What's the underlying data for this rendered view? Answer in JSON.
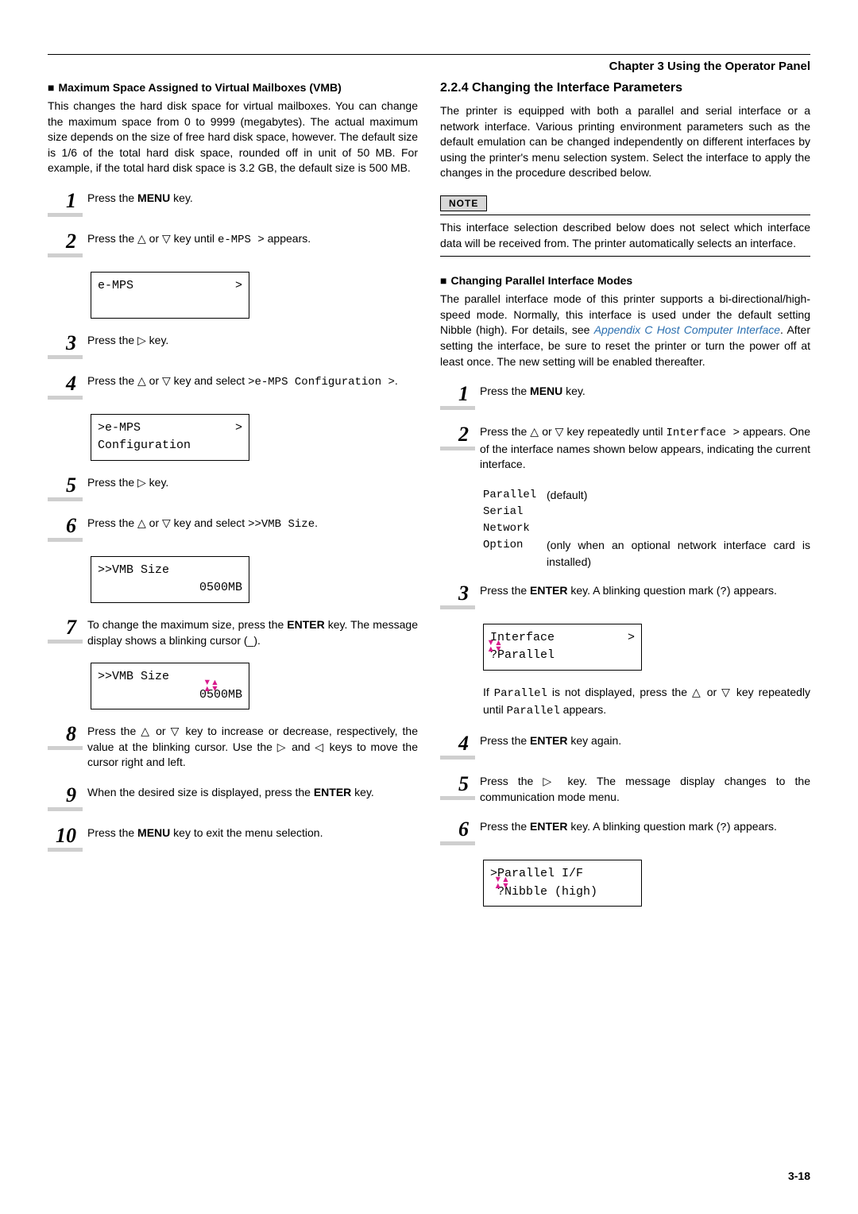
{
  "chapter_header": "Chapter 3  Using the Operator Panel",
  "left": {
    "heading": "Maximum Space Assigned to Virtual Mailboxes (VMB)",
    "intro": "This changes the hard disk space for virtual mailboxes. You can change the maximum space from 0 to 9999 (megabytes). The actual maximum size depends on the size of free hard disk space, however. The default size is 1/6 of the total hard disk space, rounded off in unit of 50 MB. For example, if the total hard disk space is 3.2 GB, the default size is 500 MB.",
    "steps": {
      "s1_a": "Press the ",
      "s1_b": "MENU",
      "s1_c": " key.",
      "s2_a": "Press the △ or ▽ key until ",
      "s2_code": "e-MPS >",
      "s2_b": " appears.",
      "lcd1_l1_left": "e-MPS",
      "lcd1_l1_right": ">",
      "s3": "Press the ▷ key.",
      "s4_a": "Press the △ or ▽ key and select ",
      "s4_code": ">e-MPS Configu­ration >",
      "s4_b": ".",
      "lcd2_l1_left": ">e-MPS",
      "lcd2_l1_right": ">",
      "lcd2_l2": " Configuration",
      "s5": "Press the ▷ key.",
      "s6_a": "Press the △ or ▽ key and select ",
      "s6_code": ">>VMB Size",
      "s6_b": ".",
      "lcd3_l1": ">>VMB Size",
      "lcd3_l2": "0500MB",
      "s7_a": "To change the maximum size, press the ",
      "s7_b": "ENTER",
      "s7_c": " key. The message display shows a blinking cursor (_).",
      "lcd4_l1": ">>VMB Size",
      "lcd4_l2_pre": "0",
      "lcd4_l2_blink": "5",
      "lcd4_l2_post": "00MB",
      "s8": "Press the △ or ▽ key to increase or decrease, respectively, the value at the blinking cursor. Use the ▷ and ◁ keys to move the cursor right and left.",
      "s9_a": "When the desired size is displayed, press the ",
      "s9_b": "ENTER",
      "s9_c": " key.",
      "s10_a": "Press the ",
      "s10_b": "MENU",
      "s10_c": " key to exit the menu selection."
    }
  },
  "right": {
    "section_title": "2.2.4 Changing the Interface Parameters",
    "intro": "The printer is equipped with both a parallel and serial interface or a network interface. Various printing environment parameters such as the default emulation can be changed independently on different interfaces by using the printer's menu selection system. Select the interface to apply the changes in the procedure described below.",
    "note_label": "NOTE",
    "note_text": "This interface selection described below does not select which interface data will be received from. The printer automatically selects an interface.",
    "sub_heading": "Changing Parallel Interface Modes",
    "para2_a": "The parallel interface mode of this printer supports a bi-directional/high-speed mode. Normally, this interface is used under the default setting Nibble (high). For details, see ",
    "para2_link": "Appendix C Host Computer Interface",
    "para2_b": ". After setting the interface, be sure to reset the printer or turn the power off at least once. The new setting will be enabled thereafter.",
    "steps": {
      "s1_a": "Press the ",
      "s1_b": "MENU",
      "s1_c": " key.",
      "s2_a": "Press the △ or ▽ key repeatedly until ",
      "s2_code": "Interface >",
      "s2_b": " appears. One of the interface names shown below appears, indicating the current interface.",
      "opt1_k": "Parallel",
      "opt1_d": "(default)",
      "opt2_k": "Serial",
      "opt3_k": "Network",
      "opt4_k": "Option",
      "opt4_d": "(only when an optional network interface card is installed)",
      "s3_a": "Press the ",
      "s3_b": "ENTER",
      "s3_c": " key. A blinking question mark (",
      "s3_code": "?",
      "s3_d": ") appears.",
      "lcd1_l1_left": "Interface",
      "lcd1_l1_right": ">",
      "lcd1_l2_q": "?",
      "lcd1_l2_rest": "Parallel",
      "after1_a": "If ",
      "after1_code1": "Parallel",
      "after1_b": " is not displayed, press the △ or ▽ key repeatedly until ",
      "after1_code2": "Parallel",
      "after1_c": " appears.",
      "s4_a": "Press the ",
      "s4_b": "ENTER",
      "s4_c": " key again.",
      "s5": "Press the ▷ key. The message display changes to the communication mode menu.",
      "s6_a": "Press the ",
      "s6_b": "ENTER",
      "s6_c": " key. A blinking question mark (",
      "s6_code": "?",
      "s6_d": ") appears.",
      "lcd2_l1": ">Parallel I/F",
      "lcd2_l2_q": "?",
      "lcd2_l2_rest": "Nibble (high)"
    }
  },
  "page_number": "3-18",
  "colors": {
    "accent_pink": "#d81b8c",
    "link_blue": "#2a6fb0",
    "step_underline": "#cfcfcf"
  }
}
